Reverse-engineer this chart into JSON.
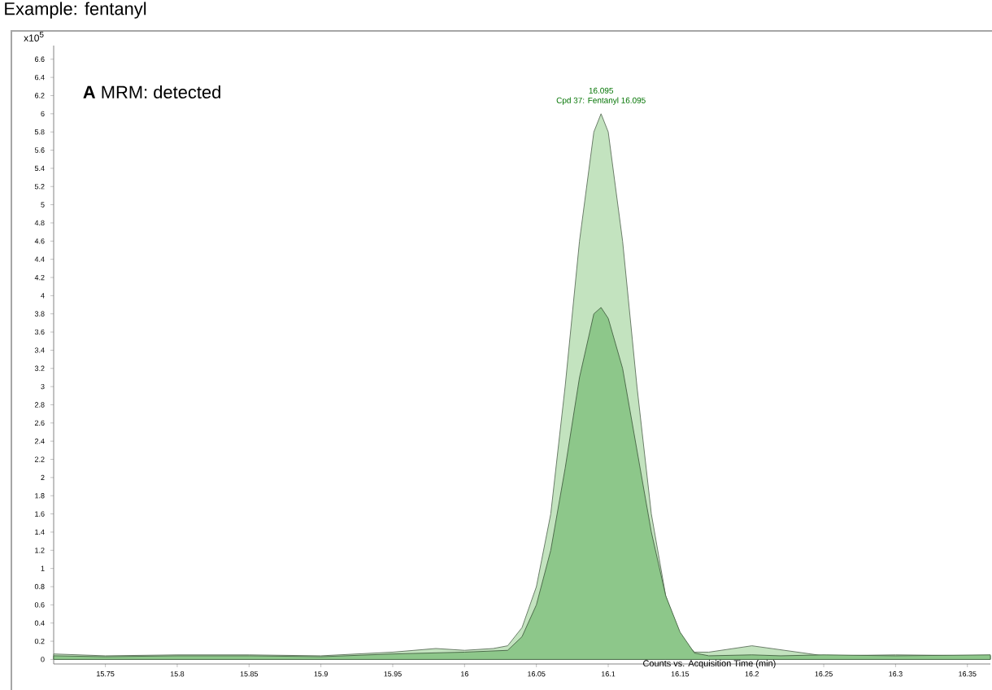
{
  "chart_data": {
    "type": "area",
    "title": "Example: fentanyl",
    "xlabel": "Counts vs. Acquisition Time (min)",
    "ylabel": "x10$^{5}$",
    "annotations": [
      "**A** MRM: detected",
      {
        "text": "16.095",
        "x": 16.095,
        "y": 6.0
      },
      {
        "text": "Cpd 37: Fentanyl 16.095",
        "x": 16.095,
        "y": 6.0
      }
    ],
    "series": [
      {
        "color": "#c3e3bf",
        "x": [
          15.714,
          15.75,
          15.8,
          15.85,
          15.9,
          15.95,
          15.98,
          16.0,
          16.02,
          16.03,
          16.04,
          16.05,
          16.06,
          16.07,
          16.08,
          16.09,
          16.095,
          16.1,
          16.11,
          16.12,
          16.13,
          16.14,
          16.15,
          16.16,
          16.17,
          16.2,
          16.25,
          16.3,
          16.366
        ],
        "values": [
          0.06,
          0.04,
          0.05,
          0.05,
          0.04,
          0.08,
          0.12,
          0.1,
          0.12,
          0.15,
          0.35,
          0.8,
          1.6,
          3.0,
          4.6,
          5.8,
          6.0,
          5.8,
          4.6,
          3.0,
          1.6,
          0.7,
          0.25,
          0.08,
          0.08,
          0.15,
          0.04,
          0.05,
          0.04
        ]
      },
      {
        "color": "#8dc78a",
        "x": [
          15.714,
          15.75,
          15.8,
          15.85,
          15.9,
          15.95,
          16.0,
          16.03,
          16.04,
          16.05,
          16.06,
          16.07,
          16.08,
          16.09,
          16.095,
          16.1,
          16.11,
          16.12,
          16.13,
          16.14,
          16.15,
          16.16,
          16.17,
          16.2,
          16.22,
          16.25,
          16.3,
          16.366
        ],
        "values": [
          0.04,
          0.03,
          0.04,
          0.04,
          0.03,
          0.06,
          0.08,
          0.1,
          0.25,
          0.6,
          1.2,
          2.1,
          3.1,
          3.8,
          3.87,
          3.75,
          3.2,
          2.3,
          1.4,
          0.7,
          0.3,
          0.07,
          0.04,
          0.05,
          0.04,
          0.05,
          0.04,
          0.05
        ]
      }
    ],
    "xlim": [
      15.714,
      16.366
    ],
    "ylim": [
      -0.05,
      6.75
    ],
    "xticks": [
      15.75,
      15.8,
      15.85,
      15.9,
      15.95,
      16,
      16.05,
      16.1,
      16.15,
      16.2,
      16.25,
      16.3,
      16.35
    ],
    "yticks": [
      0,
      0.2,
      0.4,
      0.6,
      0.8,
      1,
      1.2,
      1.4,
      1.6,
      1.8,
      2,
      2.2,
      2.4,
      2.6,
      2.8,
      3,
      3.2,
      3.4,
      3.6,
      3.8,
      4,
      4.2,
      4.4,
      4.6,
      4.8,
      5,
      5.2,
      5.4,
      5.6,
      5.8,
      6,
      6.2,
      6.4,
      6.6
    ],
    "grid": false
  }
}
